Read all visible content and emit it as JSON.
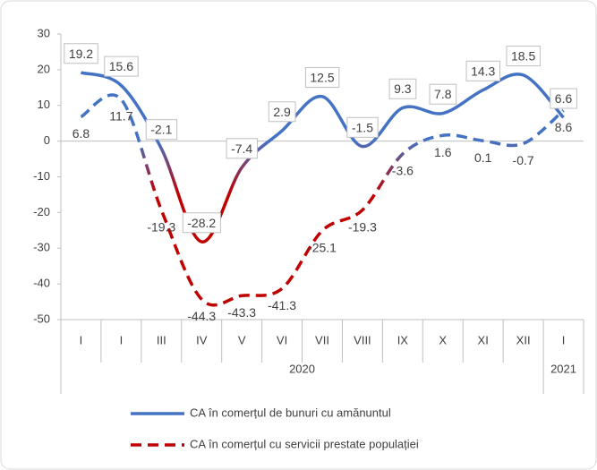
{
  "chart_data": {
    "type": "line",
    "categories": [
      "I",
      "I",
      "III",
      "IV",
      "V",
      "VI",
      "VII",
      "VIII",
      "IX",
      "X",
      "XI",
      "XII",
      "I"
    ],
    "group_labels": [
      "2020",
      "2021"
    ],
    "series": [
      {
        "name": "CA în comerțul de bunuri cu amănuntul",
        "color": "#4472c4",
        "negative_color": "#c00000",
        "dash": false,
        "values": [
          19.2,
          15.6,
          -2.1,
          -28.2,
          -7.4,
          2.9,
          12.5,
          -1.5,
          9.3,
          7.8,
          14.3,
          18.5,
          6.6
        ]
      },
      {
        "name": "CA în comerțul cu servicii prestate populației",
        "color": "#4472c4",
        "negative_color": "#c00000",
        "dash": true,
        "values": [
          6.8,
          11.7,
          -19.3,
          -44.3,
          -43.3,
          -41.3,
          -25.1,
          -19.3,
          -3.6,
          1.6,
          0.1,
          -0.7,
          8.6
        ]
      }
    ],
    "ylim": [
      -50,
      30
    ],
    "yticks": [
      30,
      20,
      10,
      0,
      -10,
      -20,
      -30,
      -40,
      -50
    ]
  }
}
